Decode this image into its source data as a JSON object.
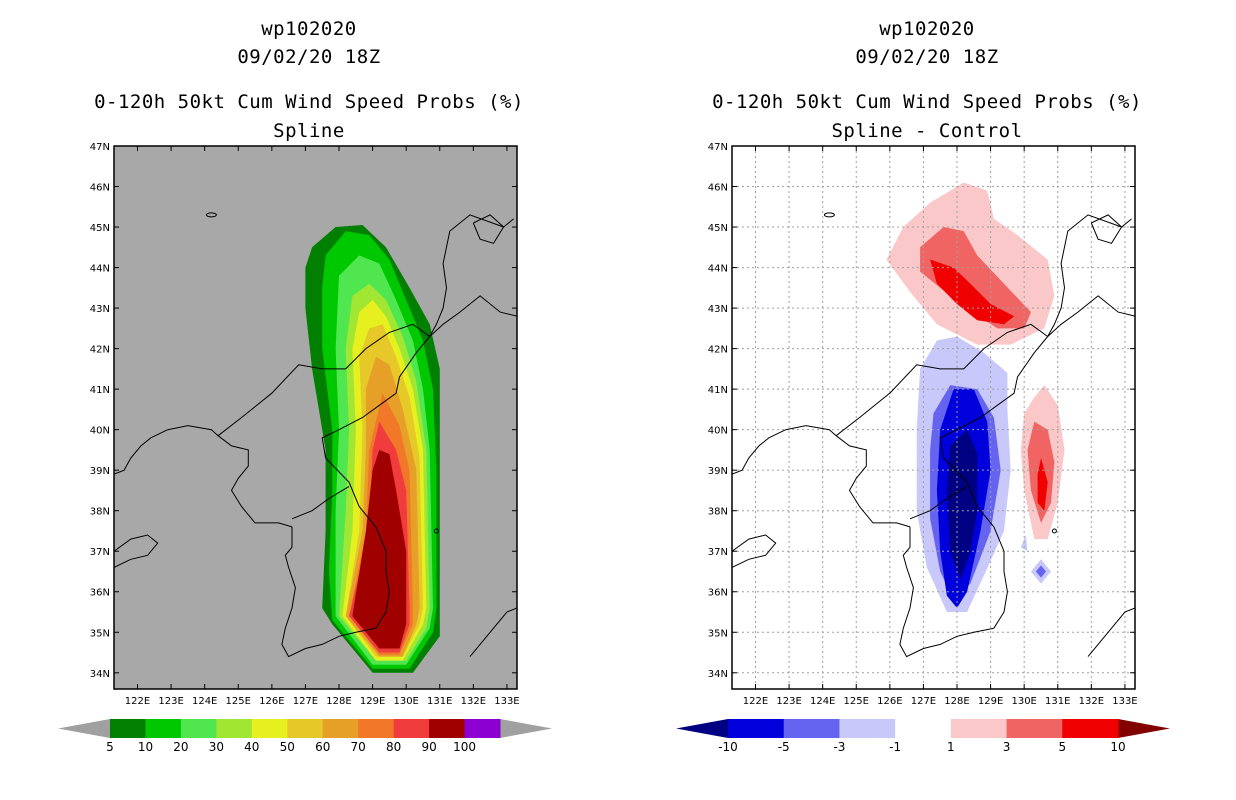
{
  "chart_data": [
    {
      "type": "contour-map",
      "storm_id": "wp102020",
      "datetime": "09/02/20 18Z",
      "title": "0-120h 50kt Cum Wind Speed Probs (%)",
      "subtitle": "Spline",
      "lon_ticks": [
        "122E",
        "123E",
        "124E",
        "125E",
        "126E",
        "127E",
        "128E",
        "129E",
        "130E",
        "131E",
        "132E",
        "133E"
      ],
      "lat_ticks": [
        "34N",
        "35N",
        "36N",
        "37N",
        "38N",
        "39N",
        "40N",
        "41N",
        "42N",
        "43N",
        "44N",
        "45N",
        "46N",
        "47N"
      ],
      "lon_range": [
        121.3,
        133.3
      ],
      "lat_range": [
        33.6,
        47.0
      ],
      "colorbar": {
        "labels": [
          "5",
          "10",
          "20",
          "30",
          "40",
          "50",
          "60",
          "70",
          "80",
          "90",
          "100"
        ],
        "colors": [
          "#007f00",
          "#00c800",
          "#50e650",
          "#a0e632",
          "#e6f01e",
          "#e6c828",
          "#e6a028",
          "#f07828",
          "#f03c3c",
          "#a00000",
          "#8c00d2"
        ],
        "end_colors": [
          "#a0a0a0",
          "#a0a0a0"
        ]
      },
      "probability_maximum_region": "central Korean Peninsula, 35N-39.5N, 128E-130.5E"
    },
    {
      "type": "contour-map",
      "storm_id": "wp102020",
      "datetime": "09/02/20 18Z",
      "title": "0-120h 50kt Cum Wind Speed Probs (%)",
      "subtitle": "Spline - Control",
      "lon_ticks": [
        "122E",
        "123E",
        "124E",
        "125E",
        "126E",
        "127E",
        "128E",
        "129E",
        "130E",
        "131E",
        "132E",
        "133E"
      ],
      "lat_ticks": [
        "34N",
        "35N",
        "36N",
        "37N",
        "38N",
        "39N",
        "40N",
        "41N",
        "42N",
        "43N",
        "44N",
        "45N",
        "46N",
        "47N"
      ],
      "lon_range": [
        121.3,
        133.3
      ],
      "lat_range": [
        33.6,
        47.0
      ],
      "colorbar": {
        "labels": [
          "-10",
          "-5",
          "-3",
          "-1",
          "1",
          "3",
          "5",
          "10"
        ],
        "colors": [
          "#0000dc",
          "#6464f0",
          "#c8c8fa",
          "#ffffff",
          "#fac8c8",
          "#f06464",
          "#f00000"
        ],
        "end_colors": [
          "#000082",
          "#820000"
        ]
      }
    }
  ]
}
